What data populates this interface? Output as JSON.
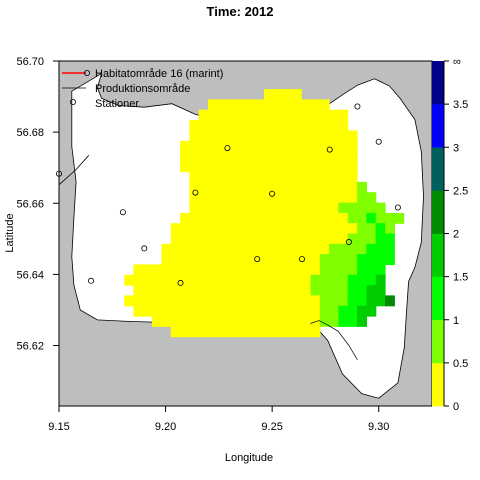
{
  "chart_data": {
    "type": "heatmap",
    "title": "Time: 2012",
    "xlabel": "Longitude",
    "ylabel": "Latitude",
    "xlim": [
      9.15,
      9.325
    ],
    "ylim": [
      56.603,
      56.7
    ],
    "x_ticks": [
      9.15,
      9.2,
      9.25,
      9.3
    ],
    "x_tick_labels": [
      "9.15",
      "9.20",
      "9.25",
      "9.30"
    ],
    "y_ticks": [
      56.62,
      56.64,
      56.66,
      56.68,
      56.7
    ],
    "y_tick_labels": [
      "56.62",
      "56.64",
      "56.66",
      "56.68",
      "56.70"
    ],
    "grid": false,
    "colors": {
      "land": "#bebebe",
      "water": "#ffffff",
      "habitat_line": "#ff0000",
      "production_line": "#000000"
    },
    "legend": {
      "position": "top-left",
      "entries": [
        {
          "label": "Habitatområde 16 (marint)",
          "kind": "line",
          "color": "#ff0000"
        },
        {
          "label": "Produktionsområde",
          "kind": "line",
          "color": "#000000"
        },
        {
          "label": "Stationer",
          "kind": "point",
          "color": "#000000"
        }
      ]
    },
    "colorbar": {
      "breaks": [
        0,
        0.5,
        1,
        1.5,
        2,
        2.5,
        3,
        3.5,
        "∞"
      ],
      "tick_labels": [
        "0",
        "0.5",
        "1",
        "1.5",
        "2",
        "2.5",
        "3",
        "3.5",
        "∞"
      ],
      "colors": [
        "#ffff00",
        "#7fff00",
        "#00ff00",
        "#00cd00",
        "#008b00",
        "#006060",
        "#0000ff",
        "#00008b"
      ]
    },
    "grid_cells": {
      "x0": 9.15,
      "y0": 56.6225,
      "dx": 0.00437,
      "dy": 0.0029,
      "ncol": 40,
      "nrow": 27,
      "rows": [
        "........................................",
        "........................................",
        "........................................",
        "......................0000..............",
        "................0000000000000...........",
        "...............0000000000000000.........",
        "..............00000000000000000.........",
        "..............000000000000000000........",
        ".............0000000000000000000........",
        ".............0000000000000000000........",
        ".............0000000000000000000........",
        "..............000000000000000000........",
        "..............0000000000000000001.......",
        "..............00000000000000000011......",
        "..............000000000000000011111.....",
        ".............000000000000000000112111...",
        "............000000000000000000001121....",
        "............000000000000000000011122....",
        "...........0000000000000000001111222....",
        "...........0000000000000000011112222....",
        "........000000000000000000001111222.....",
        ".......0000000000000000000011112223.....",
        "........000000000000000000011112233.....",
        ".......00000000000000000000011122334....",
        "........00000000000000000000112233......",
        "..........00000000000000000011223.......",
        "............0000000000000000............"
      ]
    },
    "stations": [
      {
        "lon": 9.165,
        "lat": 56.6382
      },
      {
        "lon": 9.18,
        "lat": 56.6575
      },
      {
        "lon": 9.19,
        "lat": 56.6473
      },
      {
        "lon": 9.207,
        "lat": 56.6376
      },
      {
        "lon": 9.214,
        "lat": 56.663
      },
      {
        "lon": 9.229,
        "lat": 56.6755
      },
      {
        "lon": 9.243,
        "lat": 56.6443
      },
      {
        "lon": 9.25,
        "lat": 56.6627
      },
      {
        "lon": 9.264,
        "lat": 56.6443
      },
      {
        "lon": 9.277,
        "lat": 56.6751
      },
      {
        "lon": 9.286,
        "lat": 56.6491
      },
      {
        "lon": 9.29,
        "lat": 56.6872
      },
      {
        "lon": 9.3,
        "lat": 56.6773
      },
      {
        "lon": 9.309,
        "lat": 56.6588
      },
      {
        "lon": 9.15,
        "lat": 56.6683
      }
    ]
  }
}
